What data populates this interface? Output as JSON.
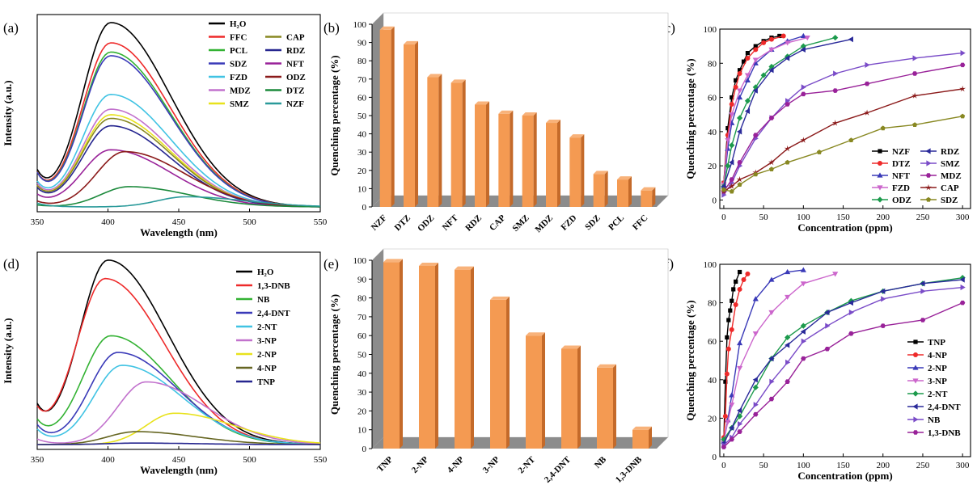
{
  "figure": {
    "panel_labels": [
      "(a)",
      "(b)",
      "(c)",
      "(d)",
      "(e)",
      "(f)"
    ]
  },
  "chart_data": [
    {
      "panel": "(a)",
      "type": "line",
      "xlabel": "Wavelength (nm)",
      "ylabel": "Intensity (a.u.)",
      "xlim": [
        350,
        550
      ],
      "xticks": [
        350,
        400,
        450,
        500,
        550
      ],
      "grid": false,
      "legend_placement": "top-right",
      "series": [
        {
          "name": "H₂O",
          "color": "#000000",
          "peak_x": 402,
          "peak": 1.0,
          "baseline": 0.17
        },
        {
          "name": "FFC",
          "color": "#ee2a2a",
          "peak_x": 402,
          "peak": 0.89,
          "baseline": 0.16
        },
        {
          "name": "PCL",
          "color": "#33b233",
          "peak_x": 402,
          "peak": 0.84,
          "baseline": 0.16
        },
        {
          "name": "SDZ",
          "color": "#3a3ab8",
          "peak_x": 402,
          "peak": 0.82,
          "baseline": 0.16
        },
        {
          "name": "FZD",
          "color": "#40c3e3",
          "peak_x": 402,
          "peak": 0.61,
          "baseline": 0.12
        },
        {
          "name": "MDZ",
          "color": "#c272cd",
          "peak_x": 402,
          "peak": 0.53,
          "baseline": 0.11
        },
        {
          "name": "SMZ",
          "color": "#e8e21c",
          "peak_x": 402,
          "peak": 0.5,
          "baseline": 0.1
        },
        {
          "name": "CAP",
          "color": "#888822",
          "peak_x": 402,
          "peak": 0.48,
          "baseline": 0.1
        },
        {
          "name": "RDZ",
          "color": "#26268f",
          "peak_x": 402,
          "peak": 0.44,
          "baseline": 0.09
        },
        {
          "name": "NFT",
          "color": "#992299",
          "peak_x": 402,
          "peak": 0.31,
          "baseline": 0.06
        },
        {
          "name": "ODZ",
          "color": "#8b1a1a",
          "peak_x": 412,
          "peak": 0.3,
          "baseline": 0.03
        },
        {
          "name": "DTZ",
          "color": "#1c8a3c",
          "peak_x": 415,
          "peak": 0.11,
          "baseline": 0.01
        },
        {
          "name": "NZF",
          "color": "#2a9a9a",
          "peak_x": 455,
          "peak": 0.055,
          "baseline": 0.02
        }
      ]
    },
    {
      "panel": "(b)",
      "type": "bar",
      "ylabel": "Quenching percentage (%)",
      "ylim": [
        0,
        100
      ],
      "yticks": [
        0,
        10,
        20,
        30,
        40,
        50,
        60,
        70,
        80,
        90,
        100
      ],
      "categories": [
        "NZF",
        "DTZ",
        "ODZ",
        "NFT",
        "RDZ",
        "CAP",
        "SMZ",
        "MDZ",
        "FZD",
        "SDZ",
        "PCL",
        "FFC"
      ],
      "values": [
        97,
        89,
        71,
        68,
        56,
        51,
        50,
        46,
        38,
        18,
        15,
        9
      ],
      "bar_color": "#f49a52"
    },
    {
      "panel": "(c)",
      "type": "line",
      "xlabel": "Concentration (ppm)",
      "ylabel": "Quenching percentage (%)",
      "xlim": [
        -5,
        310
      ],
      "ylim": [
        -5,
        100
      ],
      "xticks": [
        0,
        50,
        100,
        150,
        200,
        250,
        300
      ],
      "yticks": [
        0,
        20,
        40,
        60,
        80,
        100
      ],
      "legend_placement": "bottom-right",
      "series": [
        {
          "name": "NZF",
          "color": "#000000",
          "marker": "square",
          "x": [
            0,
            5,
            10,
            15,
            20,
            25,
            30,
            40,
            50,
            60,
            70
          ],
          "y": [
            10,
            42,
            60,
            70,
            76,
            81,
            86,
            90,
            93,
            95,
            96
          ]
        },
        {
          "name": "DTZ",
          "color": "#ee2a2a",
          "marker": "circle",
          "x": [
            0,
            5,
            10,
            15,
            20,
            30,
            40,
            50,
            60,
            75
          ],
          "y": [
            10,
            38,
            56,
            66,
            74,
            83,
            88,
            92,
            94,
            96
          ]
        },
        {
          "name": "NFT",
          "color": "#3a3ab8",
          "marker": "triangle-up",
          "x": [
            0,
            5,
            10,
            20,
            30,
            40,
            60,
            80,
            100
          ],
          "y": [
            8,
            30,
            45,
            60,
            70,
            80,
            88,
            93,
            96
          ]
        },
        {
          "name": "FZD",
          "color": "#cc66cc",
          "marker": "triangle-down",
          "x": [
            0,
            5,
            10,
            20,
            30,
            40,
            60,
            80,
            105
          ],
          "y": [
            9,
            35,
            50,
            64,
            73,
            82,
            88,
            92,
            95
          ]
        },
        {
          "name": "ODZ",
          "color": "#1c9a4c",
          "marker": "diamond",
          "x": [
            0,
            5,
            10,
            20,
            30,
            40,
            50,
            60,
            80,
            100,
            140
          ],
          "y": [
            8,
            20,
            32,
            48,
            58,
            66,
            73,
            78,
            84,
            90,
            95
          ]
        },
        {
          "name": "RDZ",
          "color": "#2a2a9a",
          "marker": "triangle-left",
          "x": [
            0,
            10,
            20,
            30,
            40,
            60,
            80,
            100,
            160
          ],
          "y": [
            8,
            22,
            40,
            52,
            64,
            76,
            83,
            88,
            94
          ]
        },
        {
          "name": "SMZ",
          "color": "#7a4cc8",
          "marker": "triangle-right",
          "x": [
            0,
            10,
            20,
            40,
            60,
            80,
            100,
            140,
            180,
            240,
            300
          ],
          "y": [
            3,
            10,
            20,
            36,
            48,
            58,
            66,
            74,
            79,
            83,
            86
          ]
        },
        {
          "name": "MDZ",
          "color": "#992299",
          "marker": "hexagon",
          "x": [
            0,
            10,
            20,
            40,
            60,
            80,
            100,
            140,
            180,
            240,
            300
          ],
          "y": [
            5,
            12,
            22,
            38,
            48,
            56,
            62,
            64,
            68,
            74,
            79
          ]
        },
        {
          "name": "CAP",
          "color": "#8b1a1a",
          "marker": "star",
          "x": [
            0,
            10,
            20,
            40,
            60,
            80,
            100,
            140,
            180,
            240,
            300
          ],
          "y": [
            5,
            8,
            12,
            16,
            22,
            30,
            35,
            45,
            51,
            61,
            65
          ]
        },
        {
          "name": "SDZ",
          "color": "#888822",
          "marker": "pentagon",
          "x": [
            0,
            10,
            20,
            40,
            60,
            80,
            120,
            160,
            200,
            240,
            300
          ],
          "y": [
            6,
            5,
            9,
            15,
            18,
            22,
            28,
            35,
            42,
            44,
            49
          ]
        }
      ]
    },
    {
      "panel": "(d)",
      "type": "line",
      "xlabel": "Wavelength (nm)",
      "ylabel": "Intensity (a.u.)",
      "xlim": [
        350,
        550
      ],
      "xticks": [
        350,
        400,
        450,
        500,
        550
      ],
      "grid": false,
      "legend_placement": "top-right",
      "series": [
        {
          "name": "H₂O",
          "color": "#000000",
          "peak_x": 400,
          "peak": 1.0,
          "baseline": 0.18
        },
        {
          "name": "1,3-DNB",
          "color": "#ee2a2a",
          "peak_x": 398,
          "peak": 0.9,
          "baseline": 0.16
        },
        {
          "name": "NB",
          "color": "#33b233",
          "peak_x": 402,
          "peak": 0.59,
          "baseline": 0.12
        },
        {
          "name": "2,4-DNT",
          "color": "#3a3ab8",
          "peak_x": 407,
          "peak": 0.5,
          "baseline": 0.1
        },
        {
          "name": "2-NT",
          "color": "#40c3e3",
          "peak_x": 410,
          "peak": 0.43,
          "baseline": 0.08
        },
        {
          "name": "3-NP",
          "color": "#c272cd",
          "peak_x": 427,
          "peak": 0.34,
          "baseline": 0.03
        },
        {
          "name": "2-NP",
          "color": "#e8e21c",
          "peak_x": 447,
          "peak": 0.17,
          "baseline": 0.0
        },
        {
          "name": "4-NP",
          "color": "#666622",
          "peak_x": 420,
          "peak": 0.07,
          "baseline": 0.0
        },
        {
          "name": "TNP",
          "color": "#26268f",
          "peak_x": 420,
          "peak": 0.008,
          "baseline": 0.0
        }
      ]
    },
    {
      "panel": "(e)",
      "type": "bar",
      "ylabel": "Quenching percentage (%)",
      "ylim": [
        0,
        100
      ],
      "yticks": [
        0,
        10,
        20,
        30,
        40,
        50,
        60,
        70,
        80,
        90,
        100
      ],
      "categories": [
        "TNP",
        "2-NP",
        "4-NP",
        "3-NP",
        "2-NT",
        "2,4-DNT",
        "NB",
        "1,3-DNB"
      ],
      "values": [
        99,
        97,
        95,
        79,
        60,
        53,
        43,
        10
      ],
      "bar_color": "#f49a52"
    },
    {
      "panel": "(f)",
      "type": "line",
      "xlabel": "Concentration (ppm)",
      "ylabel": "Quenching percentage (%)",
      "xlim": [
        -5,
        310
      ],
      "ylim": [
        0,
        100
      ],
      "xticks": [
        0,
        50,
        100,
        150,
        200,
        250,
        300
      ],
      "yticks": [
        0,
        20,
        40,
        60,
        80,
        100
      ],
      "legend_placement": "right",
      "series": [
        {
          "name": "TNP",
          "color": "#000000",
          "marker": "square",
          "x": [
            0,
            2,
            4,
            6,
            8,
            10,
            12,
            15,
            20
          ],
          "y": [
            8,
            39,
            62,
            71,
            76,
            81,
            87,
            91,
            96
          ]
        },
        {
          "name": "4-NP",
          "color": "#ee2a2a",
          "marker": "circle",
          "x": [
            0,
            2,
            4,
            6,
            10,
            15,
            20,
            25,
            30
          ],
          "y": [
            10,
            21,
            43,
            56,
            66,
            79,
            87,
            92,
            95
          ]
        },
        {
          "name": "2-NP",
          "color": "#3a3ab8",
          "marker": "triangle-up",
          "x": [
            0,
            5,
            10,
            20,
            40,
            60,
            80,
            100
          ],
          "y": [
            8,
            19,
            32,
            59,
            82,
            92,
            96,
            97
          ]
        },
        {
          "name": "3-NP",
          "color": "#cc66cc",
          "marker": "triangle-down",
          "x": [
            0,
            5,
            10,
            20,
            40,
            60,
            80,
            100,
            140
          ],
          "y": [
            8,
            18,
            27,
            46,
            64,
            75,
            83,
            90,
            95
          ]
        },
        {
          "name": "2-NT",
          "color": "#1c9a4c",
          "marker": "diamond",
          "x": [
            0,
            10,
            20,
            40,
            60,
            80,
            100,
            130,
            160,
            200,
            250,
            300
          ],
          "y": [
            9,
            15,
            21,
            36,
            51,
            62,
            68,
            75,
            81,
            86,
            90,
            93
          ]
        },
        {
          "name": "2,4-DNT",
          "color": "#2a2a9a",
          "marker": "triangle-left",
          "x": [
            0,
            10,
            20,
            40,
            60,
            80,
            100,
            130,
            160,
            200,
            250,
            300
          ],
          "y": [
            7,
            15,
            24,
            40,
            51,
            58,
            65,
            75,
            80,
            86,
            90,
            92
          ]
        },
        {
          "name": "NB",
          "color": "#7a4cc8",
          "marker": "triangle-right",
          "x": [
            0,
            10,
            20,
            40,
            60,
            80,
            100,
            130,
            160,
            200,
            250,
            300
          ],
          "y": [
            6,
            10,
            17,
            27,
            39,
            49,
            60,
            68,
            75,
            82,
            86,
            88
          ]
        },
        {
          "name": "1,3-DNB",
          "color": "#992299",
          "marker": "hexagon",
          "x": [
            0,
            10,
            20,
            40,
            60,
            80,
            100,
            130,
            160,
            200,
            250,
            300
          ],
          "y": [
            5,
            9,
            13,
            22,
            30,
            39,
            51,
            56,
            64,
            68,
            71,
            80
          ]
        }
      ]
    }
  ]
}
